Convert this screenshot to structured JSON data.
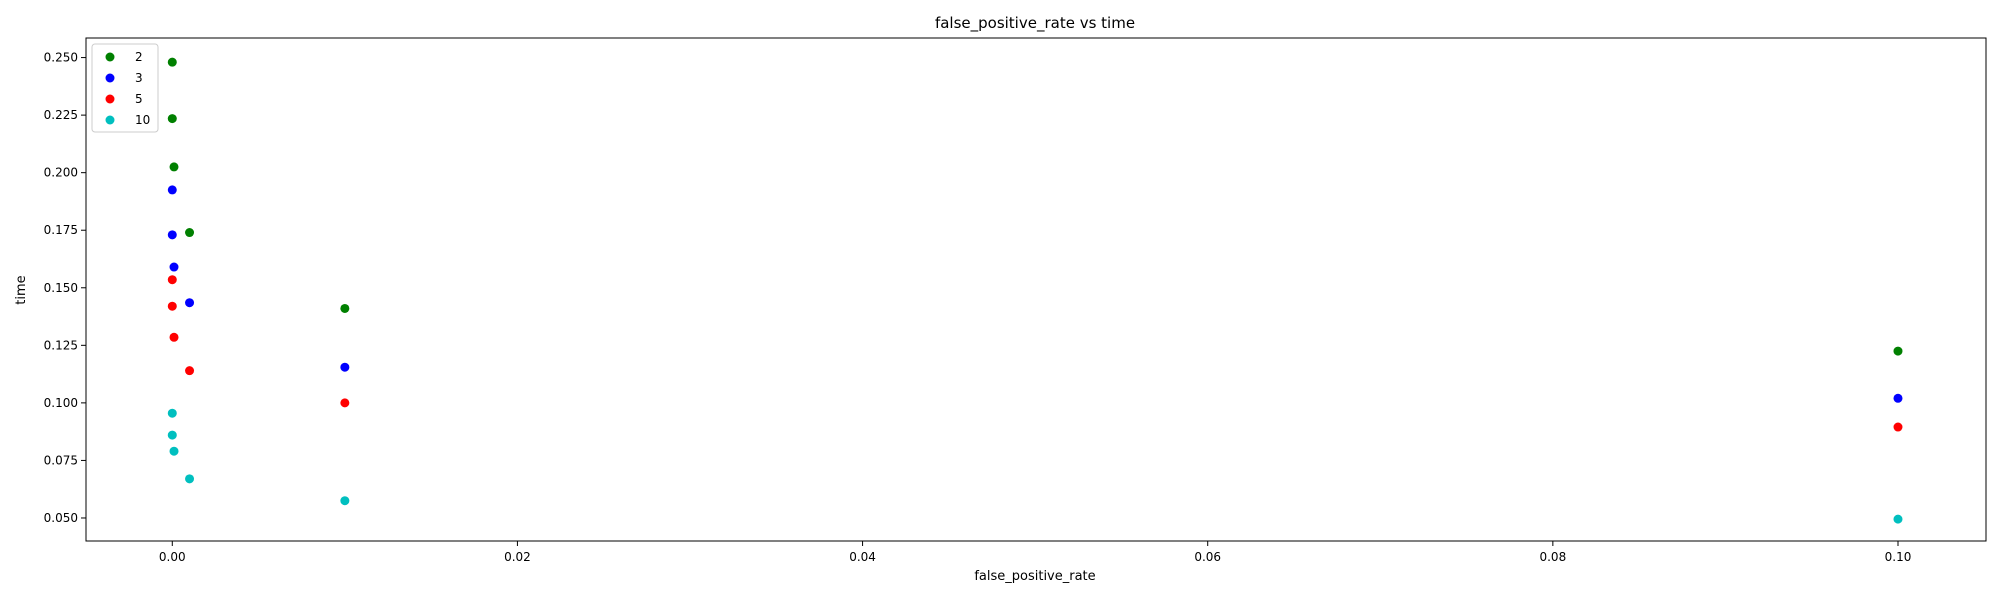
{
  "chart_data": {
    "type": "scatter",
    "title": "false_positive_rate vs time",
    "xlabel": "false_positive_rate",
    "ylabel": "time",
    "xlim": [
      -0.005,
      0.1051
    ],
    "ylim": [
      0.04,
      0.2585
    ],
    "xticks": [
      0.0,
      0.02,
      0.04,
      0.06,
      0.08,
      0.1
    ],
    "xtick_labels": [
      "0.00",
      "0.02",
      "0.04",
      "0.06",
      "0.08",
      "0.10"
    ],
    "yticks": [
      0.05,
      0.075,
      0.1,
      0.125,
      0.15,
      0.175,
      0.2,
      0.225,
      0.25
    ],
    "ytick_labels": [
      "0.050",
      "0.075",
      "0.100",
      "0.125",
      "0.150",
      "0.175",
      "0.200",
      "0.225",
      "0.250"
    ],
    "grid": false,
    "legend_position": "top-left",
    "series": [
      {
        "name": "2",
        "color": "#008000",
        "points": [
          {
            "x": 0.0,
            "y": 0.248
          },
          {
            "x": 0.0,
            "y": 0.2235
          },
          {
            "x": 0.0001,
            "y": 0.2025
          },
          {
            "x": 0.001,
            "y": 0.174
          },
          {
            "x": 0.01,
            "y": 0.141
          },
          {
            "x": 0.1,
            "y": 0.1225
          }
        ]
      },
      {
        "name": "3",
        "color": "#0000ff",
        "points": [
          {
            "x": 0.0,
            "y": 0.1925
          },
          {
            "x": 0.0,
            "y": 0.173
          },
          {
            "x": 0.0001,
            "y": 0.159
          },
          {
            "x": 0.001,
            "y": 0.1435
          },
          {
            "x": 0.01,
            "y": 0.1155
          },
          {
            "x": 0.1,
            "y": 0.102
          }
        ]
      },
      {
        "name": "5",
        "color": "#ff0000",
        "points": [
          {
            "x": 0.0,
            "y": 0.1535
          },
          {
            "x": 0.0,
            "y": 0.142
          },
          {
            "x": 0.0001,
            "y": 0.1285
          },
          {
            "x": 0.001,
            "y": 0.114
          },
          {
            "x": 0.01,
            "y": 0.1
          },
          {
            "x": 0.1,
            "y": 0.0895
          }
        ]
      },
      {
        "name": "10",
        "color": "#00bfbf",
        "points": [
          {
            "x": 0.0,
            "y": 0.0955
          },
          {
            "x": 0.0,
            "y": 0.086
          },
          {
            "x": 0.0001,
            "y": 0.079
          },
          {
            "x": 0.001,
            "y": 0.067
          },
          {
            "x": 0.01,
            "y": 0.0575
          },
          {
            "x": 0.1,
            "y": 0.0495
          }
        ]
      }
    ]
  }
}
